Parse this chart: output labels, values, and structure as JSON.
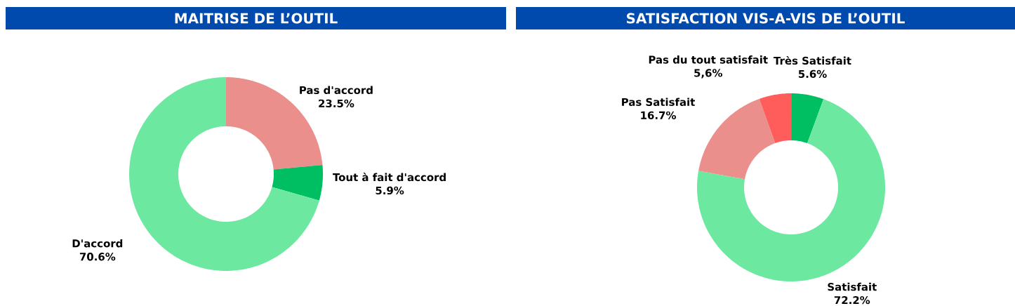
{
  "chart_data": [
    {
      "type": "donut",
      "title": "MAITRISE DE L’OUTIL",
      "categories": [
        "Pas d'accord",
        "Tout à fait d'accord",
        "D'accord"
      ],
      "values": [
        23.5,
        5.9,
        70.6
      ],
      "colors": [
        "#eb8f8c",
        "#00bf63",
        "#6ce8a1"
      ],
      "value_labels": [
        "23.5%",
        "5.9%",
        "70.6%"
      ]
    },
    {
      "type": "donut",
      "title": "SATISFACTION VIS-A-VIS DE L’OUTIL",
      "categories": [
        "Très Satisfait",
        "Satisfait",
        "Pas Satisfait",
        "Pas du tout satisfait"
      ],
      "values": [
        5.6,
        72.2,
        16.7,
        5.6
      ],
      "colors": [
        "#00bf63",
        "#6ce8a1",
        "#eb8f8c",
        "#ff5c5c"
      ],
      "value_labels": [
        "5.6%",
        "72.2%",
        "16.7%",
        "5,6%"
      ]
    }
  ]
}
